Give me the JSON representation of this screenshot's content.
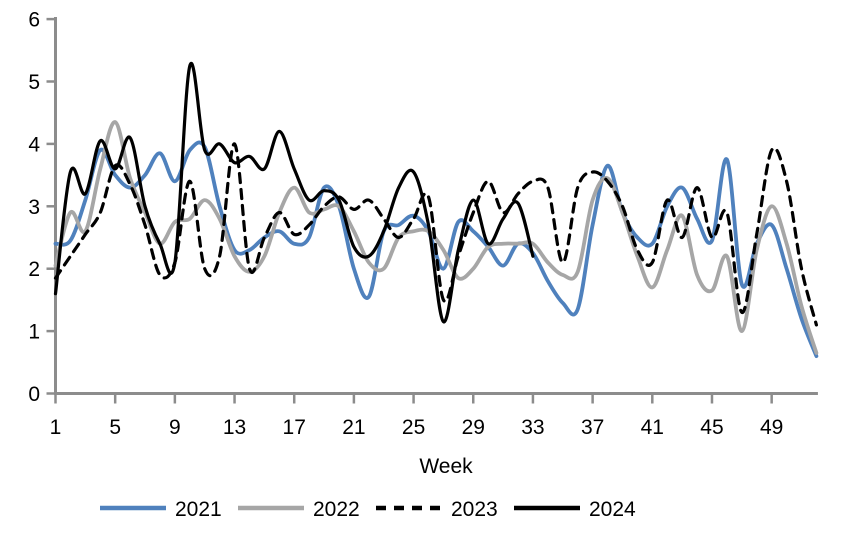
{
  "chart_data": {
    "type": "line",
    "title": "",
    "xlabel": "Week",
    "ylabel": "",
    "grid": false,
    "legend_position": "bottom",
    "xlim": [
      1,
      52
    ],
    "ylim": [
      0,
      6
    ],
    "x_ticks": [
      1,
      5,
      9,
      13,
      17,
      21,
      25,
      29,
      33,
      37,
      41,
      45,
      49
    ],
    "y_ticks": [
      0,
      1,
      2,
      3,
      4,
      5,
      6
    ],
    "x": [
      1,
      2,
      3,
      4,
      5,
      6,
      7,
      8,
      9,
      10,
      11,
      12,
      13,
      14,
      15,
      16,
      17,
      18,
      19,
      20,
      21,
      22,
      23,
      24,
      25,
      26,
      27,
      28,
      29,
      30,
      31,
      32,
      33,
      34,
      35,
      36,
      37,
      38,
      39,
      40,
      41,
      42,
      43,
      44,
      45,
      46,
      47,
      48,
      49,
      50,
      51,
      52
    ],
    "series": [
      {
        "name": "2021",
        "color": "#4F81BD",
        "style": "solid",
        "values": [
          2.4,
          2.45,
          3.1,
          3.9,
          3.5,
          3.3,
          3.5,
          3.85,
          3.4,
          3.9,
          3.95,
          3.0,
          2.3,
          2.3,
          2.5,
          2.6,
          2.4,
          2.5,
          3.3,
          3.0,
          2.0,
          1.55,
          2.6,
          2.7,
          2.85,
          2.6,
          2.0,
          2.75,
          2.6,
          2.35,
          2.05,
          2.4,
          2.25,
          1.8,
          1.45,
          1.35,
          2.7,
          3.65,
          2.9,
          2.5,
          2.4,
          3.0,
          3.3,
          2.8,
          2.45,
          3.75,
          1.75,
          2.4,
          2.7,
          2.0,
          1.2,
          0.6
        ]
      },
      {
        "name": "2022",
        "color": "#A6A6A6",
        "style": "solid",
        "values": [
          2.05,
          2.9,
          2.6,
          3.6,
          4.35,
          3.45,
          2.9,
          2.4,
          2.75,
          2.8,
          3.1,
          2.8,
          2.2,
          1.95,
          2.2,
          2.9,
          3.3,
          2.9,
          2.95,
          3.0,
          2.6,
          2.1,
          2.0,
          2.5,
          2.6,
          2.6,
          2.3,
          1.85,
          2.0,
          2.35,
          2.4,
          2.4,
          2.4,
          2.1,
          1.9,
          1.95,
          3.1,
          3.45,
          2.9,
          2.2,
          1.7,
          2.3,
          2.85,
          1.9,
          1.65,
          2.2,
          1.0,
          2.3,
          3.0,
          2.4,
          1.4,
          0.65
        ]
      },
      {
        "name": "2023",
        "color": "#000000",
        "style": "dashed",
        "values": [
          1.85,
          2.2,
          2.55,
          2.9,
          3.65,
          3.35,
          2.7,
          1.9,
          2.1,
          3.4,
          2.0,
          2.2,
          4.0,
          2.0,
          2.5,
          2.9,
          2.55,
          2.7,
          3.0,
          3.15,
          2.95,
          3.1,
          2.8,
          2.5,
          2.8,
          3.15,
          1.5,
          2.2,
          2.9,
          3.4,
          2.9,
          3.2,
          3.4,
          3.3,
          2.1,
          3.3,
          3.55,
          3.4,
          3.0,
          2.3,
          2.1,
          3.1,
          2.5,
          3.3,
          2.5,
          2.9,
          1.3,
          2.55,
          3.9,
          3.4,
          2.0,
          1.1
        ]
      },
      {
        "name": "2024",
        "color": "#000000",
        "style": "solid",
        "values": [
          1.6,
          3.55,
          3.2,
          4.05,
          3.6,
          4.1,
          3.0,
          2.4,
          2.1,
          5.25,
          3.9,
          4.0,
          3.7,
          3.8,
          3.6,
          4.2,
          3.6,
          3.1,
          3.25,
          3.1,
          2.35,
          2.2,
          2.6,
          3.3,
          3.55,
          2.7,
          1.15,
          2.3,
          3.1,
          2.4,
          2.8,
          3.05,
          2.2
        ]
      }
    ],
    "axis_color": "#8C8C8C"
  },
  "legend": {
    "items": [
      "2021",
      "2022",
      "2023",
      "2024"
    ]
  }
}
